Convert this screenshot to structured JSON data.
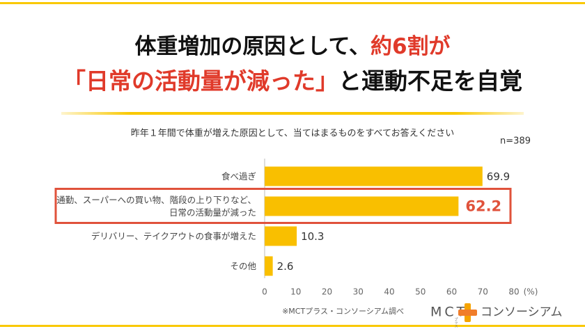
{
  "chart_data": {
    "type": "bar",
    "orientation": "horizontal",
    "title_lines": [
      [
        {
          "text": "体重増加の原因として、",
          "color": "#111111"
        },
        {
          "text": "約6割が",
          "color": "#e03a2a"
        }
      ],
      [
        {
          "text": "「日常の活動量が減った」",
          "color": "#e03a2a"
        },
        {
          "text": "と運動不足を自覚",
          "color": "#111111"
        }
      ]
    ],
    "subtitle": "昨年１年間で体重が増えた原因として、当てはまるものをすべてお答えください",
    "sample": "n=389",
    "categories": [
      "食べ過ぎ",
      "通勤、スーパーへの買い物、階段の上り下りなど、\n日常の活動量が減った",
      "デリバリー、テイクアウトの食事が増えた",
      "その他"
    ],
    "values": [
      69.9,
      62.2,
      10.3,
      2.6
    ],
    "color": "#f9bf00",
    "highlight": 1,
    "highlight_color": "#e0523b",
    "xlim": [
      0,
      80
    ],
    "xticks": [
      0,
      10,
      20,
      30,
      40,
      50,
      60,
      70,
      80
    ],
    "x_unit": "(%)",
    "source": "※MCTプラス・コンソーシアム調べ",
    "logo": {
      "main": "MCT",
      "sub": "プラス",
      "name": "コンソーシアム"
    }
  }
}
